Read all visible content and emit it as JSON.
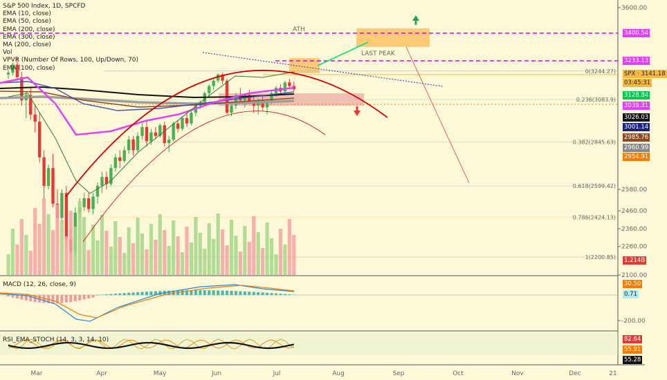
{
  "legend": {
    "title": "S&P 500 Index, 1D, SPCFD",
    "lines": [
      "EMA (10, close)",
      "EMA (50, close)",
      "EMA (200, close)",
      "EMA (300, close)",
      "MA (200, close)",
      "Vol",
      "VPVR (Number Of Rows, 100, Up/Down, 70)",
      "EMA (100, close)"
    ]
  },
  "annotations": {
    "ath": "ATH",
    "last_peak": "LAST PEAK",
    "fib_0": "0(3244.27)",
    "fib_0236": "0.236(3083.9)",
    "fib_0382": "0.382(2845.63)",
    "fib_0618": "0.618(2599.42)",
    "fib_0786": "0.786(2424.13)",
    "fib_1": "1(2200.85)"
  },
  "price_scale": {
    "ticks": [
      "3600.00",
      "2580.00",
      "2460.00",
      "2360.00",
      "2260.00",
      "2100.00"
    ],
    "labels": [
      {
        "text": "3400.54",
        "bg": "#e040fb",
        "fg": "#ffffff"
      },
      {
        "text": "3233.13",
        "bg": "#e040fb",
        "fg": "#ffffff"
      },
      {
        "text": "SPX · 3141.18",
        "bg": "#f5b942",
        "fg": "#222222"
      },
      {
        "text": "03:45:31",
        "bg": "#f5b942",
        "fg": "#222222"
      },
      {
        "text": "3128.84",
        "bg": "#00c853",
        "fg": "#ffffff"
      },
      {
        "text": "3039.31",
        "bg": "#e040fb",
        "fg": "#ffffff"
      },
      {
        "text": "3026.03",
        "bg": "#111111",
        "fg": "#ffffff"
      },
      {
        "text": "3001.14",
        "bg": "#1a237e",
        "fg": "#ffffff"
      },
      {
        "text": "2985.76",
        "bg": "#8d4a1f",
        "fg": "#ffffff"
      },
      {
        "text": "2960.99",
        "bg": "#888888",
        "fg": "#ffffff"
      },
      {
        "text": "2954.91",
        "bg": "#f57c00",
        "fg": "#ffffff"
      },
      {
        "text": "1.214B",
        "bg": "#e53935",
        "fg": "#ffffff"
      }
    ]
  },
  "macd": {
    "title": "MACD (12, 26, close, 9)",
    "ticks": [
      "-200.00"
    ],
    "labels": [
      {
        "text": "30.50",
        "bg": "#f57c00",
        "fg": "#ffffff"
      },
      {
        "text": "0.71",
        "bg": "#b2ebf2",
        "fg": "#222222"
      }
    ]
  },
  "stoch": {
    "title": "RSI_EMA_STOCH (14, 3, 3, 14, 10)",
    "labels": [
      {
        "text": "82.64",
        "bg": "#e53935",
        "fg": "#ffffff"
      },
      {
        "text": "55.91",
        "bg": "#f57c00",
        "fg": "#ffffff"
      },
      {
        "text": "55.28",
        "bg": "#111111",
        "fg": "#ffffff"
      }
    ]
  },
  "time_axis": [
    "Mar",
    "Apr",
    "May",
    "Jun",
    "Jul",
    "Aug",
    "Sep",
    "Oct",
    "Nov",
    "Dec",
    "21"
  ],
  "chart_data": {
    "type": "candlestick",
    "title": "S&P 500 Index, 1D, SPCFD",
    "x_labels": [
      "Mar",
      "Apr",
      "May",
      "Jun",
      "Jul",
      "Aug",
      "Sep",
      "Oct",
      "Nov",
      "Dec",
      "21"
    ],
    "levels": {
      "ath": 3400.54,
      "last_peak": 3233.13,
      "last_price": 3141.18
    },
    "fibonacci": [
      {
        "ratio": 0,
        "price": 3244.27
      },
      {
        "ratio": 0.236,
        "price": 3083.9
      },
      {
        "ratio": 0.382,
        "price": 2845.63
      },
      {
        "ratio": 0.618,
        "price": 2599.42
      },
      {
        "ratio": 0.786,
        "price": 2424.13
      },
      {
        "ratio": 1,
        "price": 2200.85
      }
    ],
    "ohlc": [
      [
        3225,
        3250,
        3200,
        3235
      ],
      [
        3235,
        3290,
        3220,
        3280
      ],
      [
        3280,
        3320,
        3190,
        3210
      ],
      [
        3210,
        3240,
        3050,
        3080
      ],
      [
        3080,
        3130,
        2980,
        3110
      ],
      [
        3110,
        3150,
        2970,
        3000
      ],
      [
        3000,
        3050,
        2900,
        2960
      ],
      [
        2960,
        3010,
        2730,
        2760
      ],
      [
        2760,
        2800,
        2520,
        2600
      ],
      [
        2600,
        2720,
        2580,
        2700
      ],
      [
        2700,
        2780,
        2480,
        2500
      ],
      [
        2500,
        2580,
        2400,
        2420
      ],
      [
        2420,
        2580,
        2390,
        2560
      ],
      [
        2560,
        2600,
        2260,
        2300
      ],
      [
        2300,
        2360,
        2190,
        2230
      ],
      [
        2230,
        2480,
        2200,
        2450
      ],
      [
        2450,
        2530,
        2410,
        2480
      ],
      [
        2480,
        2560,
        2460,
        2530
      ],
      [
        2530,
        2560,
        2450,
        2470
      ],
      [
        2470,
        2560,
        2440,
        2540
      ],
      [
        2540,
        2620,
        2500,
        2600
      ],
      [
        2600,
        2680,
        2560,
        2650
      ],
      [
        2650,
        2680,
        2580,
        2610
      ],
      [
        2610,
        2720,
        2600,
        2700
      ],
      [
        2700,
        2780,
        2680,
        2760
      ],
      [
        2760,
        2800,
        2700,
        2740
      ],
      [
        2740,
        2820,
        2730,
        2800
      ],
      [
        2800,
        2880,
        2780,
        2860
      ],
      [
        2860,
        2880,
        2770,
        2800
      ],
      [
        2800,
        2900,
        2790,
        2880
      ],
      [
        2880,
        2950,
        2860,
        2930
      ],
      [
        2930,
        2960,
        2820,
        2850
      ],
      [
        2850,
        2920,
        2830,
        2900
      ],
      [
        2900,
        2930,
        2860,
        2880
      ],
      [
        2880,
        2950,
        2870,
        2940
      ],
      [
        2940,
        2960,
        2820,
        2840
      ],
      [
        2840,
        2880,
        2790,
        2860
      ],
      [
        2860,
        2960,
        2850,
        2950
      ],
      [
        2950,
        2970,
        2900,
        2920
      ],
      [
        2920,
        2990,
        2910,
        2980
      ],
      [
        2980,
        3010,
        2930,
        2950
      ],
      [
        2950,
        3020,
        2940,
        3010
      ],
      [
        3010,
        3060,
        2990,
        3050
      ],
      [
        3050,
        3080,
        3030,
        3070
      ],
      [
        3070,
        3130,
        3060,
        3120
      ],
      [
        3120,
        3170,
        3100,
        3160
      ],
      [
        3160,
        3200,
        3140,
        3190
      ],
      [
        3190,
        3230,
        3180,
        3225
      ],
      [
        3225,
        3235,
        3170,
        3190
      ],
      [
        3190,
        3200,
        3000,
        3010
      ],
      [
        3010,
        3060,
        2990,
        3050
      ],
      [
        3050,
        3120,
        3030,
        3110
      ],
      [
        3110,
        3150,
        3060,
        3080
      ],
      [
        3080,
        3120,
        3040,
        3110
      ],
      [
        3110,
        3140,
        3060,
        3070
      ],
      [
        3070,
        3110,
        3010,
        3050
      ],
      [
        3050,
        3090,
        3000,
        3080
      ],
      [
        3080,
        3110,
        3020,
        3040
      ],
      [
        3040,
        3080,
        3000,
        3070
      ],
      [
        3070,
        3130,
        3060,
        3120
      ],
      [
        3120,
        3160,
        3100,
        3150
      ],
      [
        3150,
        3170,
        3110,
        3130
      ],
      [
        3130,
        3190,
        3120,
        3180
      ],
      [
        3180,
        3200,
        3150,
        3160
      ],
      [
        3160,
        3185,
        3130,
        3141
      ]
    ],
    "volume_label": "1.214B",
    "macd": {
      "title": "MACD (12, 26, close, 9)",
      "last_macd": 30.5,
      "last_hist": 0.71
    },
    "rsi_ema_stoch": {
      "title": "RSI_EMA_STOCH (14, 3, 3, 14, 10)",
      "values": [
        82.64,
        55.91,
        55.28
      ]
    }
  }
}
